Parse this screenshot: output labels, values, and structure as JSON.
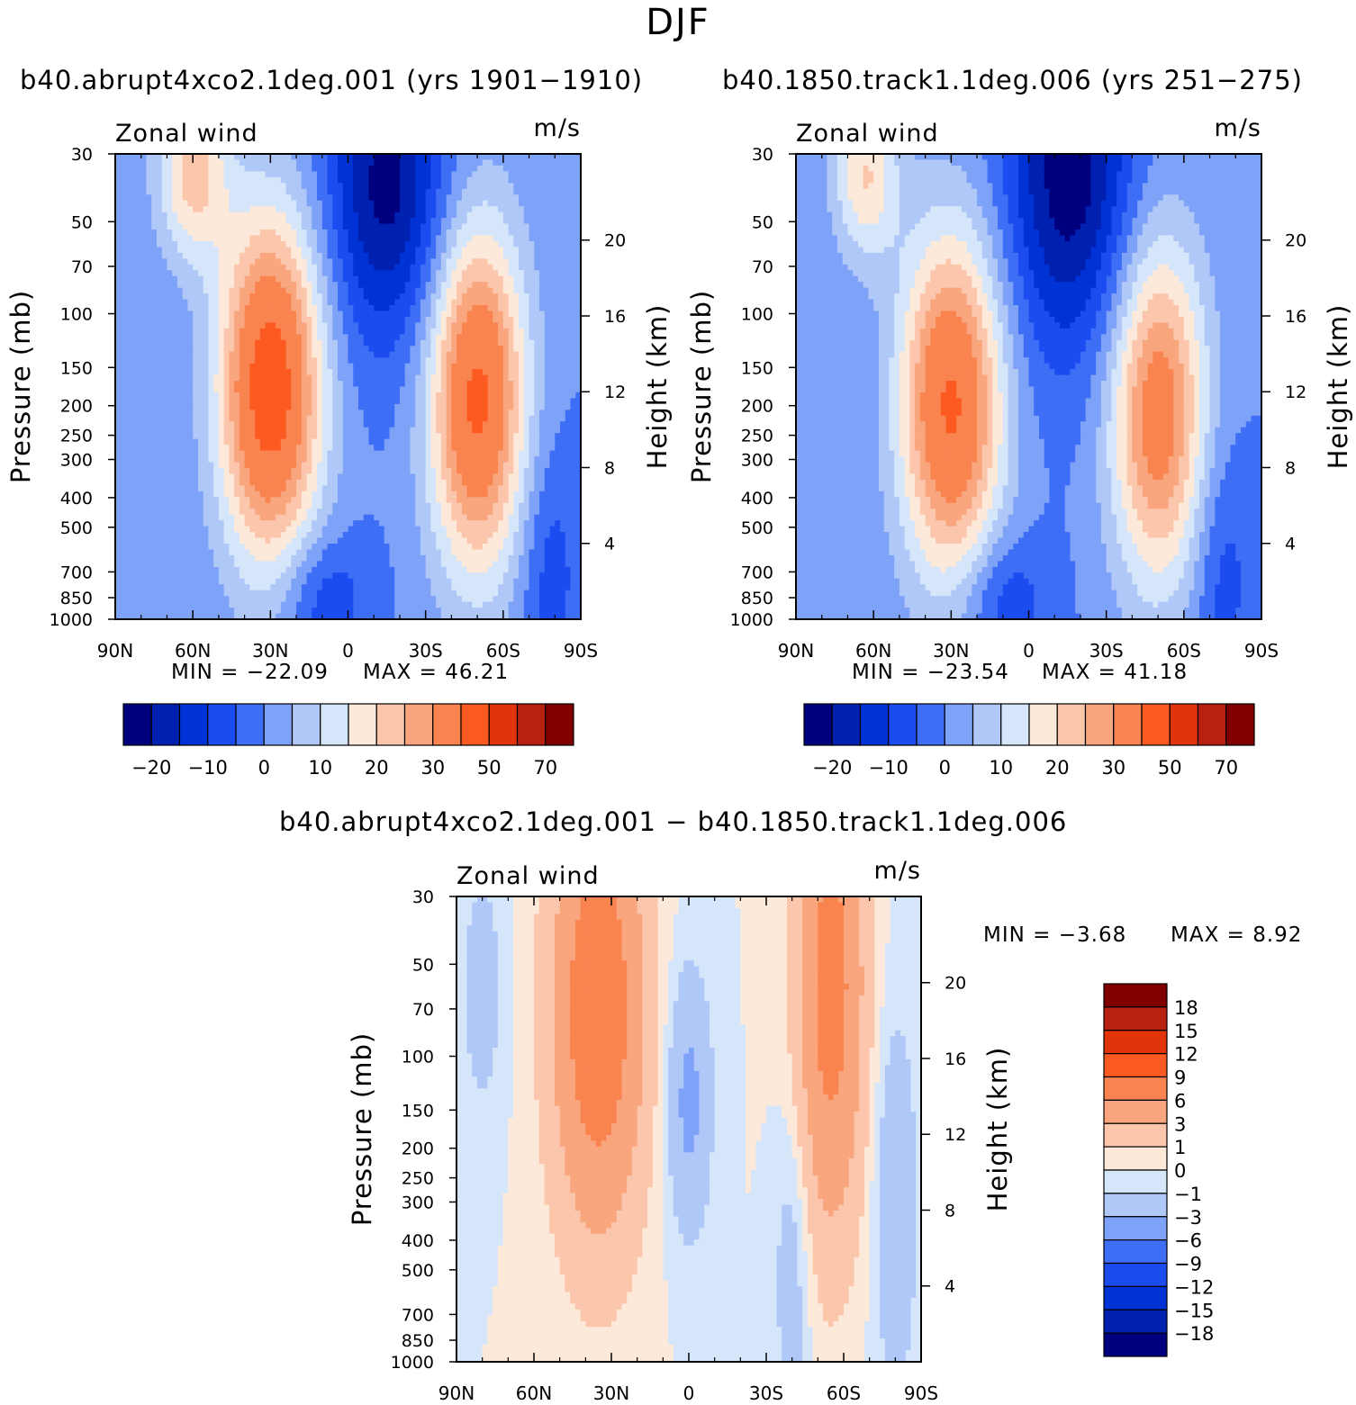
{
  "figure_title": "DJF",
  "chart_data": [
    {
      "type": "heatmap",
      "title": "b40.abrupt4xco2.1deg.001 (yrs 1901−1910)",
      "left_string": "Zonal wind",
      "right_string": "m/s",
      "xlabel": "",
      "ylabel": "Pressure (mb)",
      "y2label": "Height (km)",
      "x_ticklabels": [
        "90N",
        "60N",
        "30N",
        "0",
        "30S",
        "60S",
        "90S"
      ],
      "x_tickvalues": [
        90,
        60,
        30,
        0,
        -30,
        -60,
        -90
      ],
      "xlim": [
        90,
        -90
      ],
      "y_ticklabels": [
        "30",
        "50",
        "70",
        "100",
        "150",
        "200",
        "250",
        "300",
        "400",
        "500",
        "700",
        "850",
        "1000"
      ],
      "y_tickvalues": [
        30,
        50,
        70,
        100,
        150,
        200,
        250,
        300,
        400,
        500,
        700,
        850,
        1000
      ],
      "ylim": [
        1000,
        30
      ],
      "y_scale": "log",
      "y2_ticklabels": [
        "4",
        "8",
        "12",
        "16",
        "20"
      ],
      "y2_tickvalues": [
        4,
        8,
        12,
        16,
        20
      ],
      "min_label": "MIN = −22.09",
      "max_label": "MAX =   46.21",
      "colorbar": {
        "orientation": "horizontal",
        "levels": [
          -25,
          -20,
          -15,
          -10,
          -5,
          0,
          5,
          10,
          15,
          20,
          25,
          30,
          40,
          50,
          60,
          70
        ],
        "labels": [
          "−20",
          "−10",
          "0",
          "10",
          "20",
          "30",
          "50",
          "70"
        ],
        "colors": [
          "#00007f",
          "#0020b0",
          "#0033d6",
          "#1a4cf0",
          "#3d6ef5",
          "#7ea2f7",
          "#b0c8f8",
          "#d6e6fa",
          "#fde9da",
          "#fbc6ab",
          "#f9a67e",
          "#f9844f",
          "#fc5a21",
          "#e2340b",
          "#b82010",
          "#800000"
        ]
      },
      "features": [
        {
          "lat": 60,
          "p": 35,
          "value": 22,
          "dlat": 10,
          "dlogp": 0.2
        },
        {
          "lat": 30,
          "p": 175,
          "value": 46.21,
          "dlat": 14,
          "dlogp": 0.4
        },
        {
          "lat": -50,
          "p": 190,
          "value": 42,
          "dlat": 13,
          "dlogp": 0.4
        },
        {
          "lat": -15,
          "p": 38,
          "value": -22.09,
          "dlat": 16,
          "dlogp": 0.35
        },
        {
          "lat": 10,
          "p": 850,
          "value": -10,
          "dlat": 12,
          "dlogp": 0.15
        },
        {
          "lat": -78,
          "p": 700,
          "value": -8,
          "dlat": 8,
          "dlogp": 0.3
        }
      ]
    },
    {
      "type": "heatmap",
      "title": "b40.1850.track1.1deg.006 (yrs 251−275)",
      "left_string": "Zonal wind",
      "right_string": "m/s",
      "xlabel": "",
      "ylabel": "Pressure (mb)",
      "y2label": "Height (km)",
      "x_ticklabels": [
        "90N",
        "60N",
        "30N",
        "0",
        "30S",
        "60S",
        "90S"
      ],
      "x_tickvalues": [
        90,
        60,
        30,
        0,
        -30,
        -60,
        -90
      ],
      "xlim": [
        90,
        -90
      ],
      "y_ticklabels": [
        "30",
        "50",
        "70",
        "100",
        "150",
        "200",
        "250",
        "300",
        "400",
        "500",
        "700",
        "850",
        "1000"
      ],
      "y_tickvalues": [
        30,
        50,
        70,
        100,
        150,
        200,
        250,
        300,
        400,
        500,
        700,
        850,
        1000
      ],
      "ylim": [
        1000,
        30
      ],
      "y_scale": "log",
      "y2_ticklabels": [
        "4",
        "8",
        "12",
        "16",
        "20"
      ],
      "y2_tickvalues": [
        4,
        8,
        12,
        16,
        20
      ],
      "min_label": "MIN = −23.54",
      "max_label": "MAX =   41.18",
      "colorbar": {
        "orientation": "horizontal",
        "levels": [
          -25,
          -20,
          -15,
          -10,
          -5,
          0,
          5,
          10,
          15,
          20,
          25,
          30,
          40,
          50,
          60,
          70
        ],
        "labels": [
          "−20",
          "−10",
          "0",
          "10",
          "20",
          "30",
          "50",
          "70"
        ],
        "colors": [
          "#00007f",
          "#0020b0",
          "#0033d6",
          "#1a4cf0",
          "#3d6ef5",
          "#7ea2f7",
          "#b0c8f8",
          "#d6e6fa",
          "#fde9da",
          "#fbc6ab",
          "#f9a67e",
          "#f9844f",
          "#fc5a21",
          "#e2340b",
          "#b82010",
          "#800000"
        ]
      },
      "features": [
        {
          "lat": 63,
          "p": 35,
          "value": 20,
          "dlat": 9,
          "dlogp": 0.2
        },
        {
          "lat": 30,
          "p": 200,
          "value": 41.18,
          "dlat": 14,
          "dlogp": 0.4
        },
        {
          "lat": -50,
          "p": 210,
          "value": 35,
          "dlat": 13,
          "dlogp": 0.4
        },
        {
          "lat": -16,
          "p": 35,
          "value": -23.54,
          "dlat": 17,
          "dlogp": 0.4
        },
        {
          "lat": 10,
          "p": 850,
          "value": -10,
          "dlat": 12,
          "dlogp": 0.15
        },
        {
          "lat": -75,
          "p": 700,
          "value": -8,
          "dlat": 8,
          "dlogp": 0.3
        }
      ]
    },
    {
      "type": "heatmap",
      "title": "b40.abrupt4xco2.1deg.001 − b40.1850.track1.1deg.006",
      "left_string": "Zonal wind",
      "right_string": "m/s",
      "xlabel": "",
      "ylabel": "Pressure (mb)",
      "y2label": "Height (km)",
      "x_ticklabels": [
        "90N",
        "60N",
        "30N",
        "0",
        "30S",
        "60S",
        "90S"
      ],
      "x_tickvalues": [
        90,
        60,
        30,
        0,
        -30,
        -60,
        -90
      ],
      "xlim": [
        90,
        -90
      ],
      "y_ticklabels": [
        "30",
        "50",
        "70",
        "100",
        "150",
        "200",
        "250",
        "300",
        "400",
        "500",
        "700",
        "850",
        "1000"
      ],
      "y_tickvalues": [
        30,
        50,
        70,
        100,
        150,
        200,
        250,
        300,
        400,
        500,
        700,
        850,
        1000
      ],
      "ylim": [
        1000,
        30
      ],
      "y_scale": "log",
      "y2_ticklabels": [
        "4",
        "8",
        "12",
        "16",
        "20"
      ],
      "y2_tickvalues": [
        4,
        8,
        12,
        16,
        20
      ],
      "min_label": "MIN =   −3.68",
      "max_label": "MAX =     8.92",
      "colorbar": {
        "orientation": "vertical",
        "levels": [
          -21,
          -18,
          -15,
          -12,
          -9,
          -6,
          -3,
          -1,
          0,
          1,
          3,
          6,
          9,
          12,
          15,
          18,
          21
        ],
        "labels": [
          "18",
          "15",
          "12",
          "9",
          "6",
          "3",
          "1",
          "0",
          "−1",
          "−3",
          "−6",
          "−9",
          "−12",
          "−15",
          "−18"
        ],
        "colors": [
          "#00007f",
          "#0020b0",
          "#0033d6",
          "#1a4cf0",
          "#3d6ef5",
          "#7ea2f7",
          "#b0c8f8",
          "#d6e6fa",
          "#fde9da",
          "#fbc6ab",
          "#f9a67e",
          "#f9844f",
          "#fc5a21",
          "#e2340b",
          "#b82010",
          "#800000"
        ]
      },
      "features": [
        {
          "lat": 35,
          "p": 70,
          "value": 8.92,
          "dlat": 12,
          "dlogp": 0.5
        },
        {
          "lat": -55,
          "p": 60,
          "value": 7.5,
          "dlat": 9,
          "dlogp": 0.55
        },
        {
          "lat": 0,
          "p": 140,
          "value": -3.68,
          "dlat": 6,
          "dlogp": 0.3
        },
        {
          "lat": -80,
          "p": 300,
          "value": -2.5,
          "dlat": 6,
          "dlogp": 0.45
        },
        {
          "lat": -40,
          "p": 500,
          "value": -2.0,
          "dlat": 5,
          "dlogp": 0.4
        },
        {
          "lat": 80,
          "p": 60,
          "value": -1.8,
          "dlat": 6,
          "dlogp": 0.3
        }
      ]
    }
  ]
}
